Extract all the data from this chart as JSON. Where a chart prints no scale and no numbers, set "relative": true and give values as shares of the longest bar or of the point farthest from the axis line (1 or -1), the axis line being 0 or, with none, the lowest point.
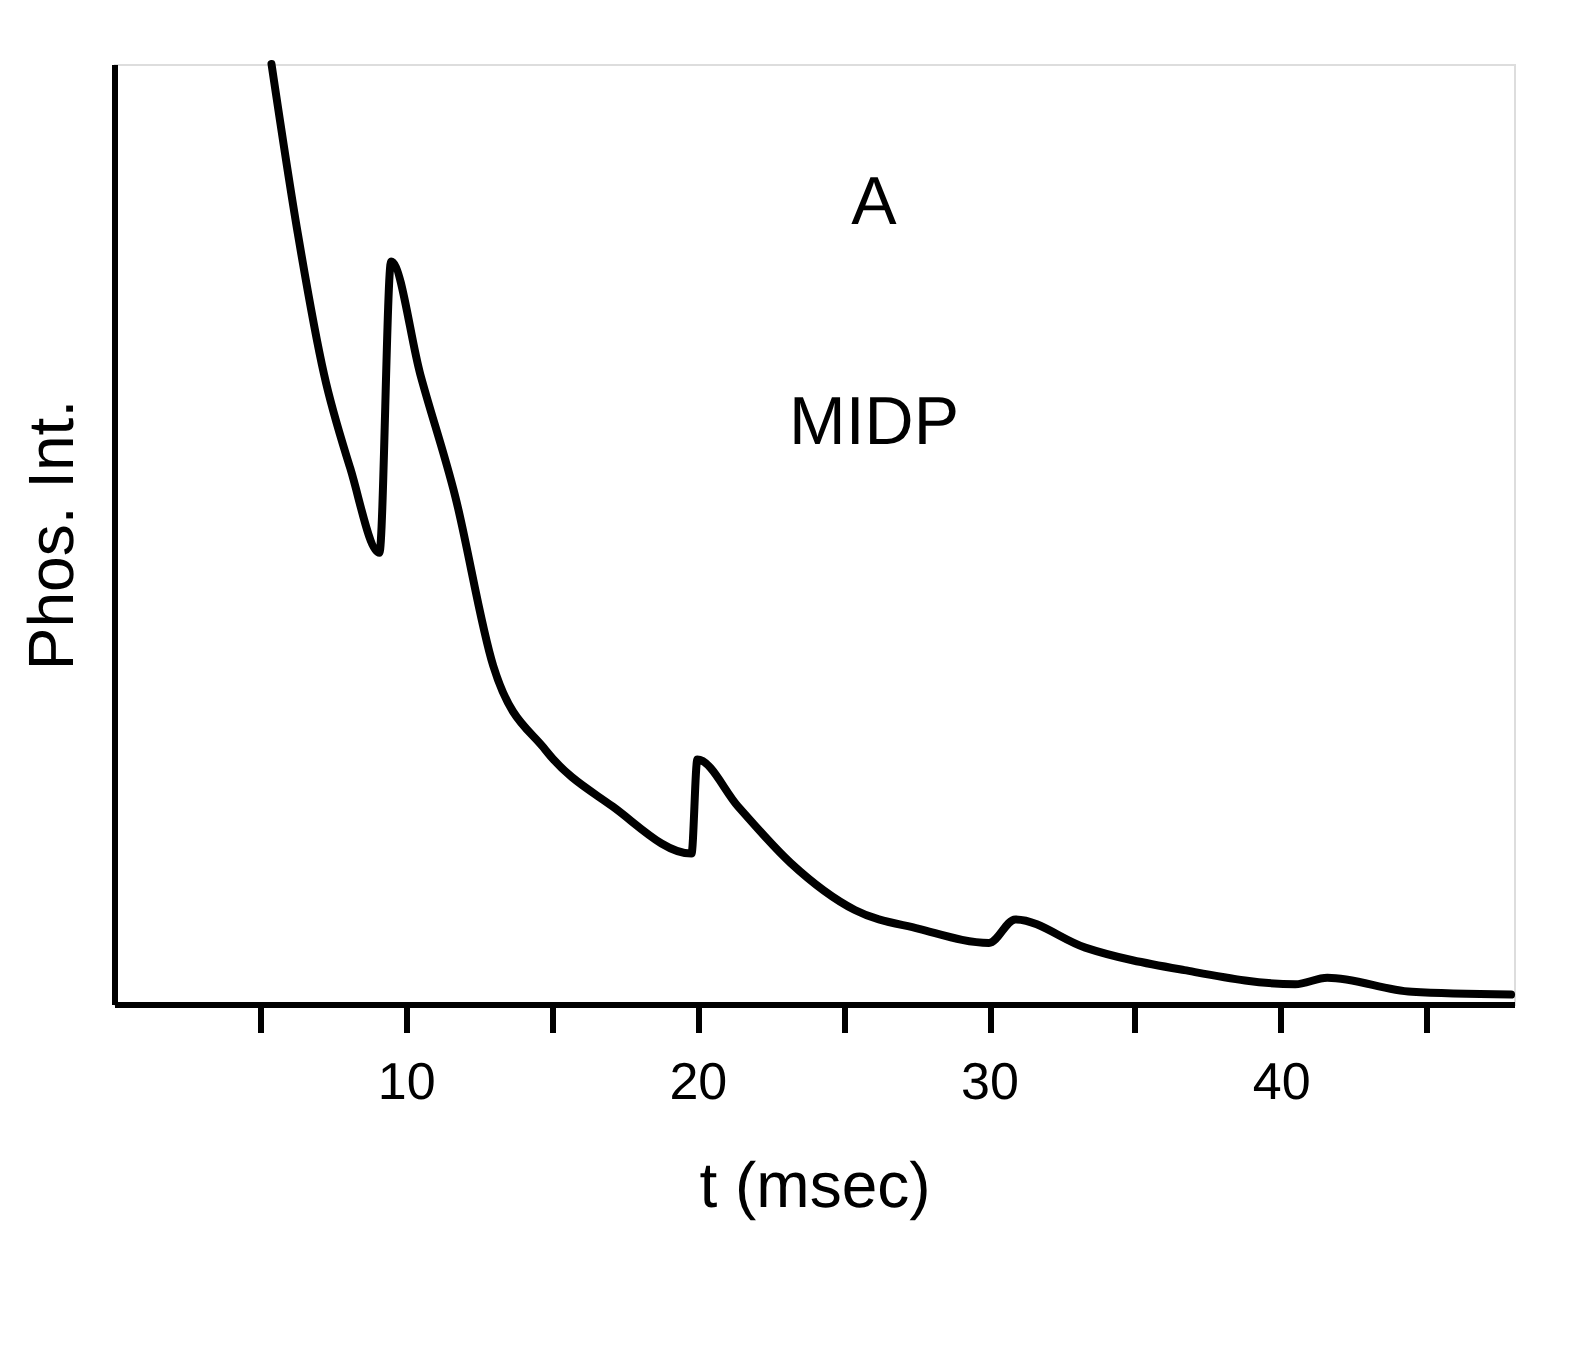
{
  "chart_data": {
    "type": "line",
    "relative": true,
    "xlabel": "t (msec)",
    "ylabel": "Phos. Int.",
    "annotations": [
      "A",
      "MIDP"
    ],
    "xlim": [
      0,
      48
    ],
    "xticks": [
      {
        "value": 5,
        "label": null
      },
      10,
      {
        "value": 15,
        "label": null
      },
      20,
      {
        "value": 25,
        "label": null
      },
      30,
      {
        "value": 35,
        "label": null
      },
      40,
      {
        "value": 45,
        "label": null
      }
    ],
    "grid": false,
    "marker": "none",
    "line_style": "solid",
    "series": [
      {
        "color": "#000000",
        "x": [
          5.4,
          6.3,
          7.2,
          8.1,
          9.1,
          9.5,
          10.5,
          11.7,
          13.0,
          14.8,
          17.1,
          19.8,
          20.0,
          21.4,
          23.2,
          25.4,
          27.6,
          30.0,
          30.9,
          33.3,
          36.7,
          40.5,
          41.6,
          44.5,
          47.9
        ],
        "values": [
          1.0,
          0.82,
          0.67,
          0.57,
          0.48,
          0.79,
          0.67,
          0.54,
          0.36,
          0.27,
          0.21,
          0.16,
          0.26,
          0.21,
          0.15,
          0.1,
          0.08,
          0.065,
          0.09,
          0.06,
          0.036,
          0.021,
          0.028,
          0.013,
          0.01
        ]
      }
    ]
  }
}
